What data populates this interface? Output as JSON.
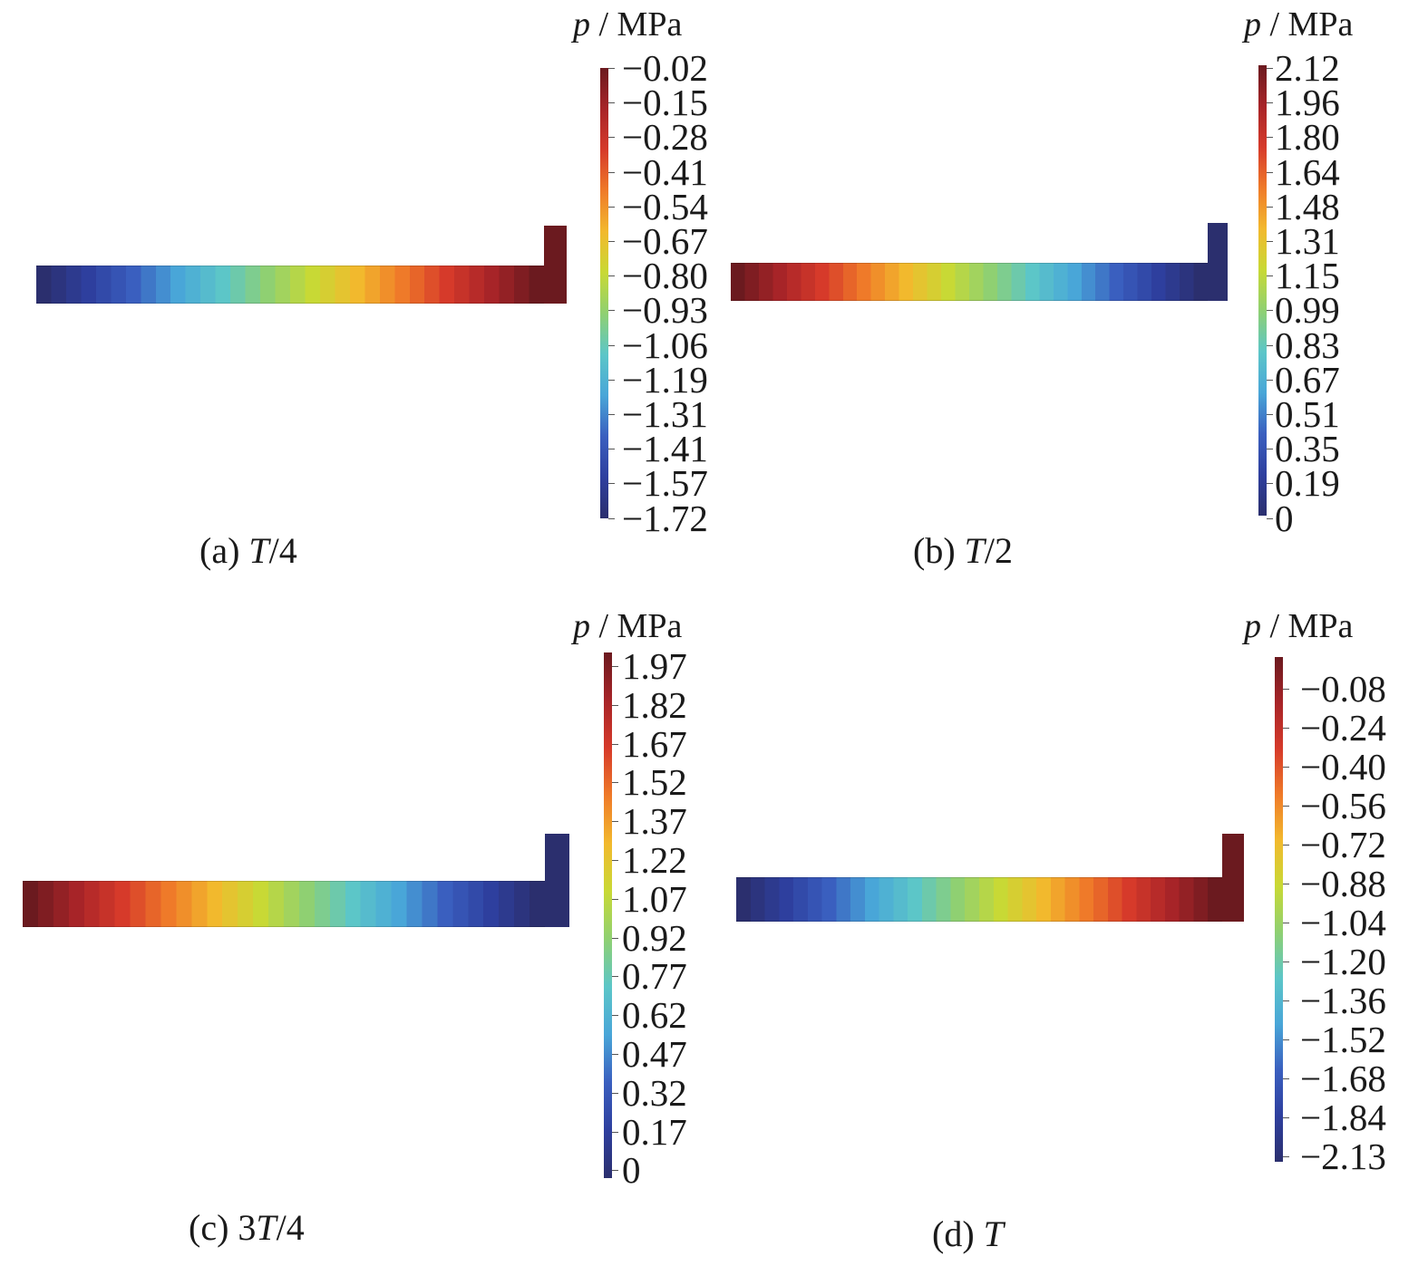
{
  "colormap": [
    "#2b2f6e",
    "#2e3f9e",
    "#3a5fbf",
    "#49a6d8",
    "#5cc6c8",
    "#8fd072",
    "#c8d935",
    "#f2b92d",
    "#ef7a29",
    "#d63a2a",
    "#a72428",
    "#6b1a1f"
  ],
  "panels": [
    {
      "id": "a",
      "caption_prefix": "(a)",
      "caption_prefix2": "",
      "caption_var": "T",
      "caption_suffix": "/4",
      "unit_var": "p",
      "unit_text": " / MPa",
      "ticks": [
        "−0.02",
        "−0.15",
        "−0.28",
        "−0.41",
        "−0.54",
        "−0.67",
        "−0.80",
        "−0.93",
        "−1.06",
        "−1.19",
        "−1.31",
        "−1.41",
        "−1.57",
        "−1.72"
      ],
      "field_direction": "increasing-right",
      "stub_level": "max"
    },
    {
      "id": "b",
      "caption_prefix": "(b)",
      "caption_prefix2": "",
      "caption_var": "T",
      "caption_suffix": "/2",
      "unit_var": "p",
      "unit_text": " / MPa",
      "ticks": [
        "2.12",
        "1.96",
        "1.80",
        "1.64",
        "1.48",
        "1.31",
        "1.15",
        "0.99",
        "0.83",
        "0.67",
        "0.51",
        "0.35",
        "0.19",
        "0"
      ],
      "field_direction": "decreasing-right",
      "stub_level": "min"
    },
    {
      "id": "c",
      "caption_prefix": "(c)",
      "caption_prefix2": "3",
      "caption_var": "T",
      "caption_suffix": "/4",
      "unit_var": "p",
      "unit_text": " / MPa",
      "ticks": [
        "1.97",
        "1.82",
        "1.67",
        "1.52",
        "1.37",
        "1.22",
        "1.07",
        "0.92",
        "0.77",
        "0.62",
        "0.47",
        "0.32",
        "0.17",
        "0"
      ],
      "field_direction": "decreasing-right",
      "stub_level": "min"
    },
    {
      "id": "d",
      "caption_prefix": "(d)",
      "caption_prefix2": "",
      "caption_var": "T",
      "caption_suffix": "",
      "unit_var": "p",
      "unit_text": " / MPa",
      "ticks": [
        "−0.08",
        "−0.24",
        "−0.40",
        "−0.56",
        "−0.72",
        "−0.88",
        "−1.04",
        "−1.20",
        "−1.36",
        "−1.52",
        "−1.68",
        "−1.84",
        "−2.13"
      ],
      "field_direction": "increasing-right",
      "stub_level": "max"
    }
  ]
}
